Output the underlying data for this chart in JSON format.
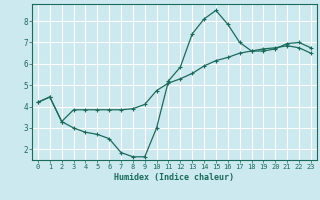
{
  "xlabel": "Humidex (Indice chaleur)",
  "background_color": "#cce9f0",
  "grid_color": "#ffffff",
  "line_color": "#1a6b5a",
  "xlim": [
    -0.5,
    23.5
  ],
  "ylim": [
    1.5,
    8.8
  ],
  "xticks": [
    0,
    1,
    2,
    3,
    4,
    5,
    6,
    7,
    8,
    9,
    10,
    11,
    12,
    13,
    14,
    15,
    16,
    17,
    18,
    19,
    20,
    21,
    22,
    23
  ],
  "yticks": [
    2,
    3,
    4,
    5,
    6,
    7,
    8
  ],
  "line1_x": [
    0,
    1,
    2,
    3,
    4,
    5,
    6,
    7,
    8,
    9,
    10,
    11,
    12,
    13,
    14,
    15,
    16,
    17,
    18,
    19,
    20,
    21,
    22,
    23
  ],
  "line1_y": [
    4.2,
    4.45,
    3.3,
    3.0,
    2.8,
    2.7,
    2.5,
    1.85,
    1.65,
    1.65,
    3.0,
    5.2,
    5.85,
    7.4,
    8.1,
    8.5,
    7.85,
    7.0,
    6.6,
    6.6,
    6.7,
    6.95,
    7.0,
    6.75
  ],
  "line2_x": [
    0,
    1,
    2,
    3,
    4,
    5,
    6,
    7,
    8,
    9,
    10,
    11,
    12,
    13,
    14,
    15,
    16,
    17,
    18,
    19,
    20,
    21,
    22,
    23
  ],
  "line2_y": [
    4.2,
    4.45,
    3.3,
    3.85,
    3.85,
    3.85,
    3.85,
    3.85,
    3.9,
    4.1,
    4.75,
    5.1,
    5.3,
    5.55,
    5.9,
    6.15,
    6.3,
    6.5,
    6.6,
    6.7,
    6.75,
    6.85,
    6.75,
    6.5
  ]
}
